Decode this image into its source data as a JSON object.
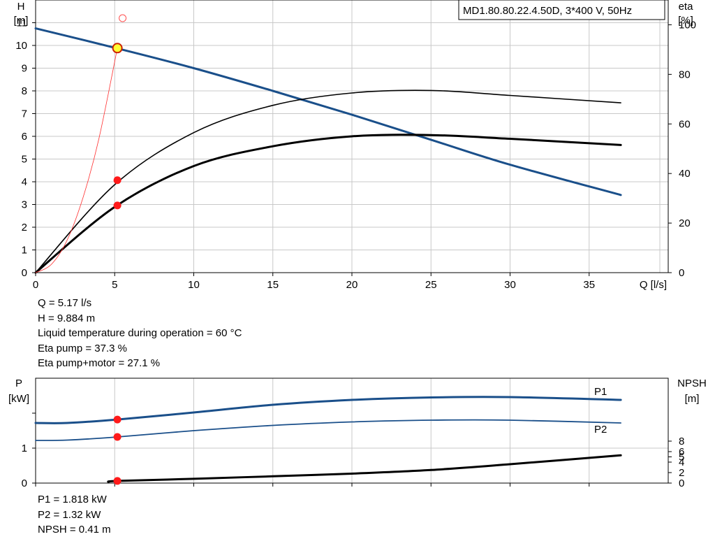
{
  "chart_data": [
    {
      "type": "line",
      "title": "MD1.80.80.22.4.50D, 3*400 V, 50Hz",
      "xlabel": "Q [l/s]",
      "ylabel_left": [
        "H",
        "[m]"
      ],
      "ylabel_right": [
        "eta",
        "[%]"
      ],
      "xlim": [
        0,
        40
      ],
      "ylim_left": [
        0,
        12
      ],
      "ylim_right": [
        0,
        110
      ],
      "x_ticks": [
        0,
        5,
        10,
        15,
        20,
        25,
        30,
        35
      ],
      "y_ticks_left": [
        0,
        1,
        2,
        3,
        4,
        5,
        6,
        7,
        8,
        9,
        10,
        11
      ],
      "y_ticks_right": [
        0,
        20,
        40,
        60,
        80,
        100
      ],
      "grid": true,
      "series": [
        {
          "axis": "left",
          "color": "#1a4f8a",
          "width": 3,
          "x": [
            0,
            5,
            10,
            15,
            20,
            25,
            30,
            37
          ],
          "y": [
            10.75,
            9.9,
            9.0,
            8.0,
            6.95,
            5.85,
            4.75,
            3.42
          ]
        },
        {
          "axis": "right",
          "color": "#000000",
          "width": 1.6,
          "x": [
            0,
            5,
            10,
            15,
            20,
            25,
            30,
            37
          ],
          "y": [
            0,
            35.5,
            56.5,
            67.5,
            72.5,
            73.5,
            71.5,
            68.5
          ]
        },
        {
          "axis": "right",
          "color": "#000000",
          "width": 3,
          "x": [
            0,
            5,
            10,
            15,
            20,
            25,
            30,
            37
          ],
          "y": [
            0,
            26.5,
            43,
            51,
            55,
            55.5,
            54,
            51.5
          ]
        },
        {
          "axis": "left",
          "color": "#ff3030",
          "width": 0.8,
          "x": [
            0,
            1,
            2,
            3,
            4,
            5.17
          ],
          "y": [
            0,
            0.37,
            1.44,
            3.31,
            5.89,
            9.884
          ]
        }
      ],
      "points": [
        {
          "axis": "left",
          "x": 5.17,
          "y": 9.884,
          "style": "operating-point"
        },
        {
          "axis": "left",
          "x": 5.5,
          "y": 11.2,
          "style": "hollow"
        },
        {
          "axis": "right",
          "x": 5.17,
          "y": 37.3,
          "style": "marker"
        },
        {
          "axis": "right",
          "x": 5.17,
          "y": 27.1,
          "style": "marker"
        }
      ]
    },
    {
      "type": "line",
      "ylabel_left": [
        "P",
        "[kW]"
      ],
      "ylabel_right": [
        "NPSH",
        "[m]"
      ],
      "xlim": [
        0,
        40
      ],
      "ylim_left": [
        0,
        3.0
      ],
      "ylim_right": [
        0,
        20
      ],
      "y_ticks_left": [
        0,
        1
      ],
      "y_ticks_right": [
        0,
        2,
        4,
        5,
        6,
        8
      ],
      "grid": true,
      "series": [
        {
          "name": "P1",
          "axis": "left",
          "color": "#1a4f8a",
          "width": 3,
          "x": [
            0,
            2,
            5.17,
            10,
            15,
            20,
            25,
            30,
            37
          ],
          "y": [
            1.72,
            1.72,
            1.818,
            2.02,
            2.24,
            2.38,
            2.45,
            2.46,
            2.38
          ]
        },
        {
          "name": "P2",
          "axis": "left",
          "color": "#1a4f8a",
          "width": 1.8,
          "x": [
            0,
            2,
            5.17,
            10,
            15,
            20,
            25,
            30,
            37
          ],
          "y": [
            1.22,
            1.23,
            1.32,
            1.5,
            1.65,
            1.75,
            1.8,
            1.8,
            1.72
          ]
        },
        {
          "name": "",
          "axis": "right",
          "color": "#000000",
          "width": 3,
          "x": [
            4.6,
            5.17,
            10,
            15,
            20,
            25,
            30,
            37
          ],
          "y": [
            0.2,
            0.41,
            0.82,
            1.3,
            1.8,
            2.5,
            3.6,
            5.3
          ]
        }
      ],
      "points": [
        {
          "axis": "left",
          "x": 5.17,
          "y": 1.818
        },
        {
          "axis": "left",
          "x": 5.17,
          "y": 1.32
        },
        {
          "axis": "right",
          "x": 5.17,
          "y": 0.41
        }
      ]
    }
  ],
  "info_top": [
    "Q = 5.17 l/s",
    "H = 9.884 m",
    "Liquid temperature during operation = 60 °C",
    "Eta pump = 37.3 %",
    "Eta pump+motor = 27.1 %"
  ],
  "info_bottom": [
    "P1 = 1.818 kW",
    "P2 = 1.32 kW",
    "NPSH = 0.41 m"
  ],
  "colors": {
    "grid": "#c8c8c8",
    "curve_blue": "#1a4f8a",
    "marker": "#ff1a1a",
    "operating_fill": "#ffff33"
  }
}
